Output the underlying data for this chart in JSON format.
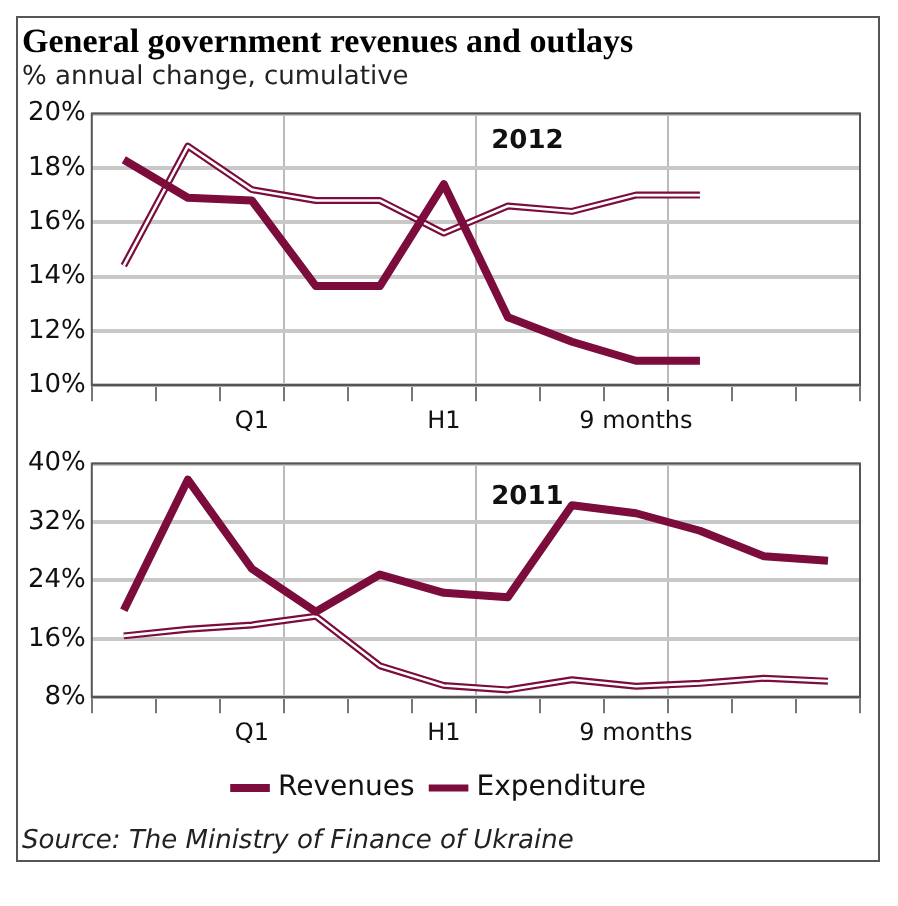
{
  "chart_data": [
    {
      "type": "line",
      "title": "General government revenues and outlays",
      "subtitle": "% annual change, cumulative",
      "annotations": [
        "2012"
      ],
      "categories": [
        null,
        null,
        "Q1",
        null,
        null,
        "H1",
        null,
        null,
        "9 months",
        null,
        null,
        null
      ],
      "series": [
        {
          "color": "#7b0c3c",
          "values": [
            18.3,
            16.9,
            16.8,
            13.65,
            13.65,
            17.4,
            12.5,
            11.6,
            10.9,
            10.9,
            null,
            null
          ]
        },
        {
          "color": "#7b0c3c",
          "values": [
            14.4,
            18.8,
            17.2,
            16.8,
            16.8,
            15.6,
            16.6,
            16.4,
            17.0,
            17.0,
            null,
            null
          ]
        }
      ],
      "ylim": [
        10,
        20
      ],
      "yticks": [
        {
          "value": 10,
          "label": "10%"
        },
        {
          "value": 12,
          "label": "12%"
        },
        {
          "value": 14,
          "label": "14%"
        },
        {
          "value": 16,
          "label": "16%"
        },
        {
          "value": 18,
          "label": "18%"
        },
        {
          "value": 20,
          "label": "20%"
        }
      ],
      "grid": true,
      "legend": false,
      "marker": "none"
    },
    {
      "type": "line",
      "annotations": [
        "2011",
        "Source: The Ministry of Finance of Ukraine"
      ],
      "categories": [
        null,
        null,
        "Q1",
        null,
        null,
        "H1",
        null,
        null,
        "9 months",
        null,
        null,
        null
      ],
      "series": [
        {
          "name": "Revenues",
          "color": "#7b0c3c",
          "values": [
            19.9,
            37.8,
            25.6,
            19.7,
            24.8,
            22.3,
            21.7,
            34.3,
            33.2,
            30.8,
            27.3,
            26.7
          ]
        },
        {
          "name": "Expenditure",
          "color": "#7b0c3c",
          "values": [
            16.4,
            17.3,
            17.9,
            19.1,
            12.3,
            9.6,
            9.0,
            10.4,
            9.5,
            9.9,
            10.6,
            10.2
          ]
        }
      ],
      "ylim": [
        8,
        40
      ],
      "yticks": [
        {
          "value": 8,
          "label": "8%"
        },
        {
          "value": 16,
          "label": "16%"
        },
        {
          "value": 24,
          "label": "24%"
        },
        {
          "value": 32,
          "label": "32%"
        },
        {
          "value": 40,
          "label": "40%"
        }
      ],
      "grid": true,
      "legend": "bottom",
      "marker": "none"
    }
  ]
}
